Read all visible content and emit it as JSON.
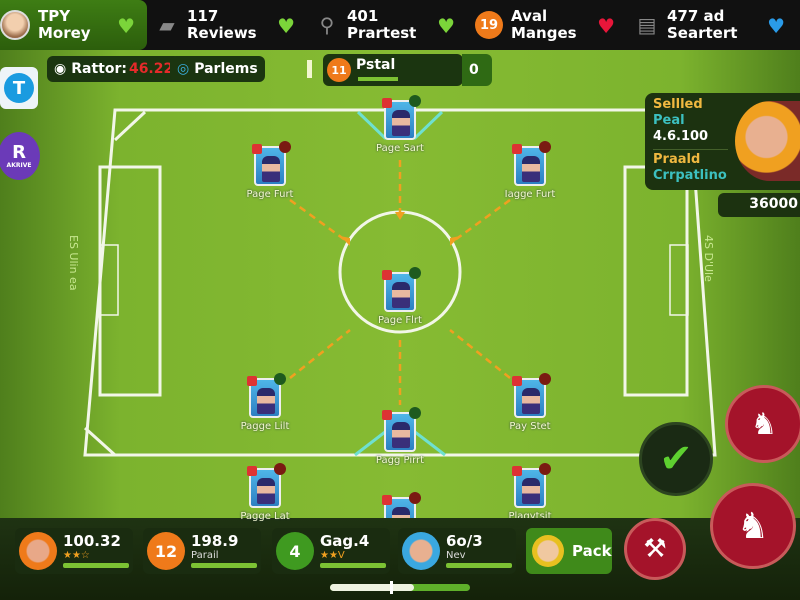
{
  "topbar": [
    {
      "line1": "TPY",
      "line2": "Morey",
      "icon": "avatar",
      "heart": "#7bd43a"
    },
    {
      "line1": "117",
      "line2": "Reviews",
      "icon": "ticket-icon",
      "heart": "#7bd43a"
    },
    {
      "line1": "401",
      "line2": "Prartest",
      "icon": "whistle-icon",
      "heart": "#7bd43a"
    },
    {
      "line1": "Aval",
      "line2": "Manges",
      "badge": "19",
      "heart": "#e8163a"
    },
    {
      "line1": "477 ad",
      "line2": "Seartert",
      "icon": "cards-icon",
      "heart": "#2a9be8"
    }
  ],
  "subbar": {
    "rating_label": "Rattor:",
    "rating_value": "46.22",
    "partners": "Parlems",
    "match_badge": "11",
    "match_label": "Pstal",
    "match_score": "0"
  },
  "side": {
    "t_label": "T",
    "r_label": "R",
    "r_sub": "AKRIVE"
  },
  "pitch_players": [
    "Page Sart",
    "Page Furt",
    "Iagge Furt",
    "Page Flrt",
    "Pagge Lilt",
    "Pay Stet",
    "Pagg Pirrt",
    "Pagge Lat",
    "",
    "Plagytsit"
  ],
  "pitch_side_text": {
    "left": "ES Ulin ea",
    "right": "4S D'Ule"
  },
  "panel": {
    "line1": "Sellled",
    "line2": "Peal",
    "line3": "4.6.100",
    "line4": "Praald",
    "line5": "Crrpatlino",
    "amount": "36000"
  },
  "bottom": [
    {
      "value": "100.32",
      "sub": "★★☆",
      "badge": ""
    },
    {
      "value": "198.9",
      "sub": "Parail",
      "badge": "12"
    },
    {
      "value": "Gag.4",
      "sub": "★★V",
      "badge": "4"
    },
    {
      "value": "6o/3",
      "sub": "Nev",
      "badge": ""
    }
  ],
  "pack_label": "Pack",
  "colors": {
    "accent_green": "#7cc233",
    "danger_red": "#a4132a",
    "orange": "#ef7a1a"
  }
}
